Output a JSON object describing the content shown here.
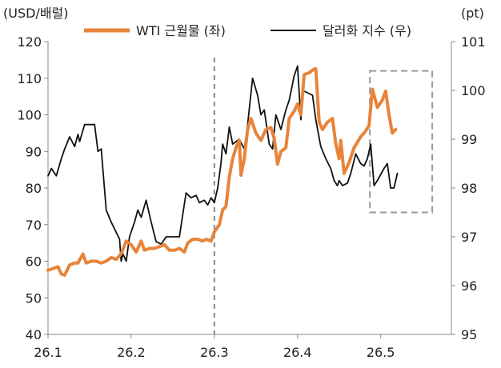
{
  "chart_data": {
    "type": "line",
    "left_axis_unit": "(USD/배럴)",
    "right_axis_unit": "(pt)",
    "x_ticks": [
      "26.1",
      "26.2",
      "26.3",
      "26.4",
      "26.5"
    ],
    "y_left_ticks": [
      40,
      50,
      60,
      70,
      80,
      90,
      100,
      110,
      120
    ],
    "y_right_ticks": [
      95,
      96,
      97,
      98,
      99,
      100,
      101
    ],
    "ylim_left": [
      40,
      120
    ],
    "ylim_right": [
      95,
      101
    ],
    "xlim": [
      0,
      4.85
    ],
    "grid": false,
    "legend_position": "top",
    "vertical_reference_x": 2.0,
    "highlight_box": {
      "x_range": [
        3.87,
        4.62
      ],
      "y_right_range": [
        97.5,
        100.4
      ]
    },
    "series": [
      {
        "name": "WTI 근월물 (좌)",
        "axis": "left",
        "color": "#E8843A",
        "points": [
          [
            0.0,
            57.5
          ],
          [
            0.06,
            58
          ],
          [
            0.12,
            58.5
          ],
          [
            0.16,
            56.5
          ],
          [
            0.2,
            56.2
          ],
          [
            0.26,
            59
          ],
          [
            0.32,
            59.5
          ],
          [
            0.36,
            59.5
          ],
          [
            0.42,
            62
          ],
          [
            0.46,
            59.5
          ],
          [
            0.52,
            60
          ],
          [
            0.58,
            60
          ],
          [
            0.64,
            59.5
          ],
          [
            0.7,
            60
          ],
          [
            0.76,
            61
          ],
          [
            0.82,
            60.5
          ],
          [
            0.88,
            62
          ],
          [
            0.94,
            65.5
          ],
          [
            1.0,
            64.5
          ],
          [
            1.06,
            62.5
          ],
          [
            1.12,
            65.5
          ],
          [
            1.16,
            63
          ],
          [
            1.22,
            63.5
          ],
          [
            1.28,
            63.5
          ],
          [
            1.34,
            64
          ],
          [
            1.4,
            64.5
          ],
          [
            1.46,
            63
          ],
          [
            1.52,
            63
          ],
          [
            1.58,
            63.5
          ],
          [
            1.64,
            62.5
          ],
          [
            1.68,
            65
          ],
          [
            1.74,
            66
          ],
          [
            1.8,
            66
          ],
          [
            1.86,
            65.5
          ],
          [
            1.9,
            66
          ],
          [
            1.96,
            65.5
          ],
          [
            2.0,
            68
          ],
          [
            2.06,
            70
          ],
          [
            2.1,
            74
          ],
          [
            2.14,
            75
          ],
          [
            2.18,
            83
          ],
          [
            2.22,
            88
          ],
          [
            2.26,
            91
          ],
          [
            2.3,
            93
          ],
          [
            2.32,
            83.5
          ],
          [
            2.36,
            88
          ],
          [
            2.4,
            96
          ],
          [
            2.44,
            99
          ],
          [
            2.5,
            95
          ],
          [
            2.56,
            93
          ],
          [
            2.62,
            96
          ],
          [
            2.68,
            96.5
          ],
          [
            2.72,
            93.5
          ],
          [
            2.76,
            86.5
          ],
          [
            2.8,
            90
          ],
          [
            2.86,
            91
          ],
          [
            2.9,
            99
          ],
          [
            2.96,
            101
          ],
          [
            3.0,
            103
          ],
          [
            3.04,
            100
          ],
          [
            3.08,
            111
          ],
          [
            3.14,
            111.5
          ],
          [
            3.2,
            112.5
          ],
          [
            3.22,
            112.5
          ],
          [
            3.26,
            98
          ],
          [
            3.3,
            96
          ],
          [
            3.36,
            98
          ],
          [
            3.42,
            99
          ],
          [
            3.46,
            92
          ],
          [
            3.5,
            88
          ],
          [
            3.52,
            93
          ],
          [
            3.56,
            84
          ],
          [
            3.62,
            87
          ],
          [
            3.68,
            91
          ],
          [
            3.72,
            92.5
          ],
          [
            3.76,
            94
          ],
          [
            3.8,
            95
          ],
          [
            3.86,
            97
          ],
          [
            3.9,
            107
          ],
          [
            3.96,
            102
          ],
          [
            4.02,
            104
          ],
          [
            4.06,
            106.5
          ],
          [
            4.1,
            100
          ],
          [
            4.14,
            95
          ],
          [
            4.18,
            96
          ]
        ]
      },
      {
        "name": "달러화 지수 (우)",
        "axis": "right",
        "color": "#111111",
        "points": [
          [
            0.0,
            98.25
          ],
          [
            0.04,
            98.4
          ],
          [
            0.1,
            98.25
          ],
          [
            0.16,
            98.6
          ],
          [
            0.2,
            98.8
          ],
          [
            0.26,
            99.05
          ],
          [
            0.32,
            98.85
          ],
          [
            0.36,
            99.1
          ],
          [
            0.38,
            98.95
          ],
          [
            0.44,
            99.3
          ],
          [
            0.5,
            99.3
          ],
          [
            0.56,
            99.3
          ],
          [
            0.6,
            98.75
          ],
          [
            0.64,
            98.8
          ],
          [
            0.7,
            97.55
          ],
          [
            0.76,
            97.3
          ],
          [
            0.86,
            96.95
          ],
          [
            0.88,
            96.5
          ],
          [
            0.9,
            96.65
          ],
          [
            0.94,
            96.5
          ],
          [
            0.98,
            97.0
          ],
          [
            1.04,
            97.3
          ],
          [
            1.08,
            97.55
          ],
          [
            1.12,
            97.4
          ],
          [
            1.18,
            97.75
          ],
          [
            1.24,
            97.3
          ],
          [
            1.3,
            96.9
          ],
          [
            1.36,
            96.85
          ],
          [
            1.42,
            97.0
          ],
          [
            1.5,
            97.0
          ],
          [
            1.58,
            97.0
          ],
          [
            1.62,
            97.45
          ],
          [
            1.66,
            97.9
          ],
          [
            1.72,
            97.8
          ],
          [
            1.78,
            97.85
          ],
          [
            1.82,
            97.7
          ],
          [
            1.88,
            97.75
          ],
          [
            1.92,
            97.65
          ],
          [
            1.96,
            97.8
          ],
          [
            2.0,
            97.7
          ],
          [
            2.04,
            98.0
          ],
          [
            2.08,
            98.5
          ],
          [
            2.1,
            98.9
          ],
          [
            2.14,
            98.7
          ],
          [
            2.18,
            99.25
          ],
          [
            2.22,
            98.9
          ],
          [
            2.26,
            98.95
          ],
          [
            2.3,
            99.0
          ],
          [
            2.36,
            98.8
          ],
          [
            2.4,
            99.3
          ],
          [
            2.46,
            100.25
          ],
          [
            2.52,
            99.9
          ],
          [
            2.56,
            99.5
          ],
          [
            2.6,
            99.6
          ],
          [
            2.66,
            98.9
          ],
          [
            2.7,
            98.8
          ],
          [
            2.74,
            99.5
          ],
          [
            2.8,
            99.2
          ],
          [
            2.86,
            99.6
          ],
          [
            2.9,
            99.8
          ],
          [
            2.96,
            100.3
          ],
          [
            3.0,
            100.5
          ],
          [
            3.04,
            99.4
          ],
          [
            3.06,
            100.0
          ],
          [
            3.12,
            99.95
          ],
          [
            3.18,
            99.9
          ],
          [
            3.22,
            99.4
          ],
          [
            3.28,
            98.85
          ],
          [
            3.34,
            98.6
          ],
          [
            3.4,
            98.4
          ],
          [
            3.44,
            98.15
          ],
          [
            3.48,
            98.05
          ],
          [
            3.5,
            98.15
          ],
          [
            3.54,
            98.05
          ],
          [
            3.6,
            98.1
          ],
          [
            3.64,
            98.3
          ],
          [
            3.7,
            98.7
          ],
          [
            3.76,
            98.5
          ],
          [
            3.8,
            98.45
          ],
          [
            3.84,
            98.6
          ],
          [
            3.88,
            98.9
          ],
          [
            3.92,
            98.05
          ],
          [
            3.96,
            98.15
          ],
          [
            4.04,
            98.4
          ],
          [
            4.08,
            98.5
          ],
          [
            4.12,
            98.0
          ],
          [
            4.16,
            98.0
          ],
          [
            4.2,
            98.3
          ]
        ]
      }
    ]
  }
}
